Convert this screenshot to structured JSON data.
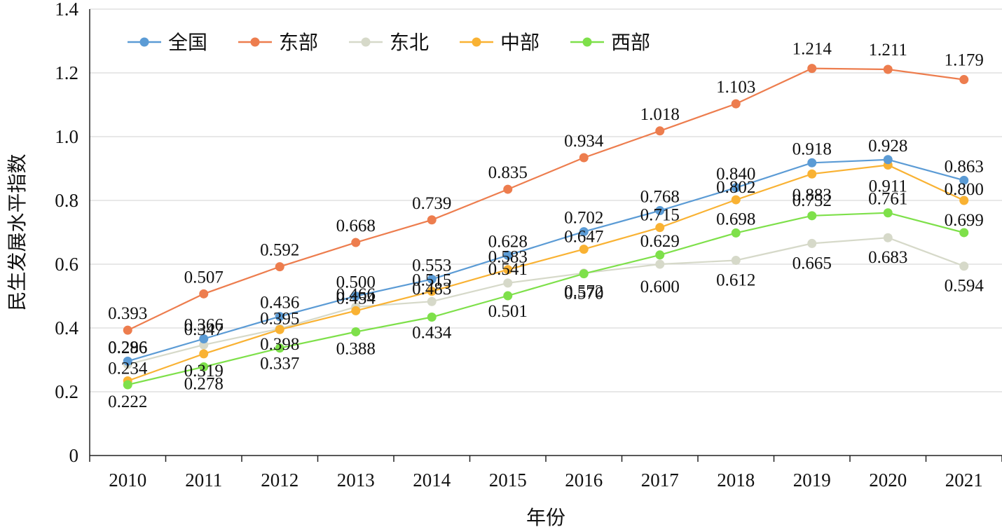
{
  "chart_data": {
    "type": "line",
    "xlabel": "年份",
    "ylabel": "民生发展水平指数",
    "categories": [
      "2010",
      "2011",
      "2012",
      "2013",
      "2014",
      "2015",
      "2016",
      "2017",
      "2018",
      "2019",
      "2020",
      "2021"
    ],
    "ylim": [
      0,
      1.4
    ],
    "yticks": [
      "0",
      "0.2",
      "0.4",
      "0.6",
      "0.8",
      "1.0",
      "1.2",
      "1.4"
    ],
    "grid": "horizontal",
    "legend_position": "top-left",
    "series": [
      {
        "name": "全国",
        "color": "#5b9bd5",
        "values": [
          0.296,
          0.366,
          0.436,
          0.5,
          0.553,
          0.628,
          0.702,
          0.768,
          0.84,
          0.918,
          0.928,
          0.863
        ],
        "labels": [
          "0.296",
          "0.366",
          "0.436",
          "0.500",
          "0.553",
          "0.628",
          "0.702",
          "0.768",
          "0.840",
          "0.918",
          "0.928",
          "0.863"
        ]
      },
      {
        "name": "东部",
        "color": "#ed7d4e",
        "values": [
          0.393,
          0.507,
          0.592,
          0.668,
          0.739,
          0.835,
          0.934,
          1.018,
          1.103,
          1.214,
          1.211,
          1.179
        ],
        "labels": [
          "0.393",
          "0.507",
          "0.592",
          "0.668",
          "0.739",
          "0.835",
          "0.934",
          "1.018",
          "1.103",
          "1.214",
          "1.211",
          "1.179"
        ]
      },
      {
        "name": "东北",
        "color": "#d6d9c9",
        "values": [
          0.286,
          0.347,
          0.398,
          0.466,
          0.483,
          0.541,
          0.572,
          0.6,
          0.612,
          0.665,
          0.683,
          0.594
        ],
        "labels": [
          "0.286",
          "0.347",
          "0.398",
          "0.466",
          "0.483",
          "0.541",
          "0.572",
          "0.600",
          "0.612",
          "0.665",
          "0.683",
          "0.594"
        ]
      },
      {
        "name": "中部",
        "color": "#f9b233",
        "values": [
          0.234,
          0.319,
          0.395,
          0.454,
          0.515,
          0.583,
          0.647,
          0.715,
          0.802,
          0.883,
          0.911,
          0.8
        ],
        "labels": [
          "0.234",
          "0.319",
          "0.395",
          "0.454",
          "0.515",
          "0.583",
          "0.647",
          "0.715",
          "0.802",
          "0.883",
          "0.911",
          "0.800"
        ]
      },
      {
        "name": "西部",
        "color": "#7ee04a",
        "values": [
          0.222,
          0.278,
          0.337,
          0.388,
          0.434,
          0.501,
          0.57,
          0.629,
          0.698,
          0.752,
          0.761,
          0.699
        ],
        "labels": [
          "0.222",
          "0.278",
          "0.337",
          "0.388",
          "0.434",
          "0.501",
          "0.570",
          "0.629",
          "0.698",
          "0.752",
          "0.761",
          "0.699"
        ]
      }
    ]
  }
}
